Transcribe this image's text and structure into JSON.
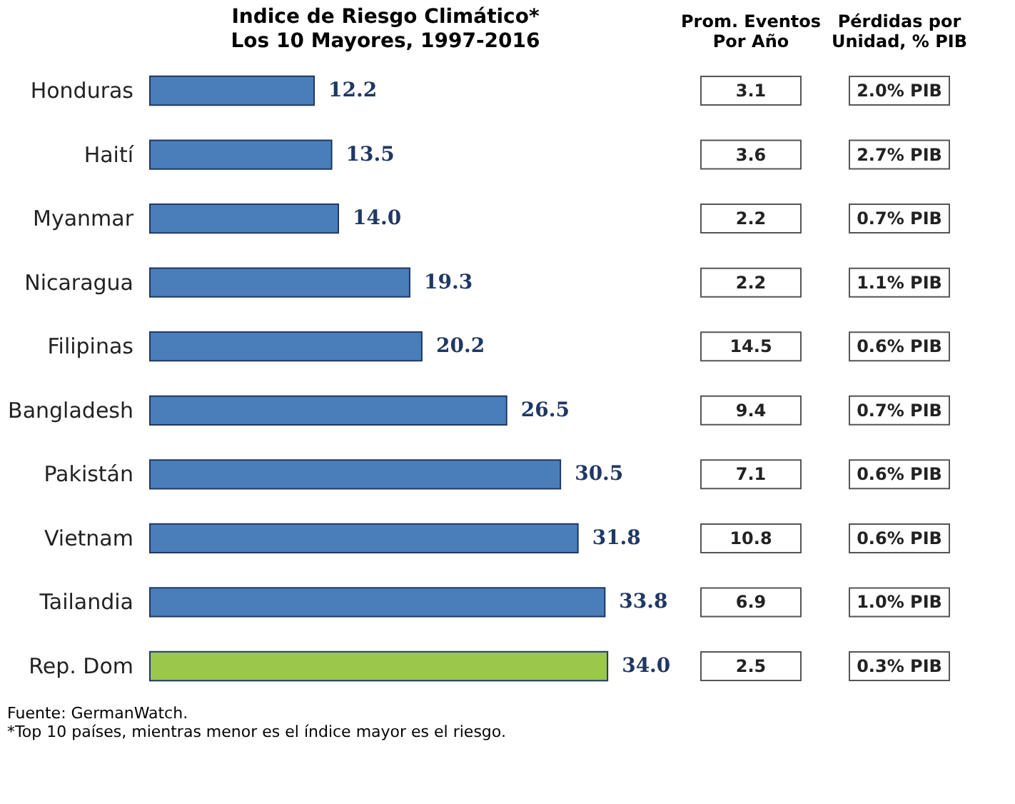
{
  "chart_data": [
    {
      "type": "bar",
      "orientation": "horizontal",
      "title": "Indice de Riesgo Climático*",
      "subtitle": "Los 10 Mayores, 1997-2016",
      "categories": [
        "Honduras",
        "Haití",
        "Myanmar",
        "Nicaragua",
        "Filipinas",
        "Bangladesh",
        "Pakistán",
        "Vietnam",
        "Tailandia",
        "Rep. Dom"
      ],
      "values": [
        12.2,
        13.5,
        14.0,
        19.3,
        20.2,
        26.5,
        30.5,
        31.8,
        33.8,
        34.0
      ],
      "value_labels": [
        "12.2",
        "13.5",
        "14.0",
        "19.3",
        "20.2",
        "26.5",
        "30.5",
        "31.8",
        "33.8",
        "34.0"
      ],
      "colors": [
        "#4a7ebb",
        "#4a7ebb",
        "#4a7ebb",
        "#4a7ebb",
        "#4a7ebb",
        "#4a7ebb",
        "#4a7ebb",
        "#4a7ebb",
        "#4a7ebb",
        "#9bc84a"
      ],
      "annotations": [
        "Fuente: GermanWatch.",
        "*Top 10 países, mientras menor es el índice mayor es el riesgo."
      ]
    },
    {
      "type": "other",
      "title": [
        "Prom. Eventos",
        "Por Año"
      ],
      "annotations": [
        "3.1",
        "3.6",
        "2.2",
        "2.2",
        "14.5",
        "9.4",
        "7.1",
        "10.8",
        "6.9",
        "2.5"
      ]
    },
    {
      "type": "other",
      "title": [
        "Pérdidas por",
        "Unidad, % PIB"
      ],
      "annotations": [
        "2.0% PIB",
        "2.7% PIB",
        "0.7% PIB",
        "1.1% PIB",
        "0.6% PIB",
        "0.7% PIB",
        "0.6% PIB",
        "0.6% PIB",
        "1.0% PIB",
        "0.3% PIB"
      ]
    }
  ]
}
